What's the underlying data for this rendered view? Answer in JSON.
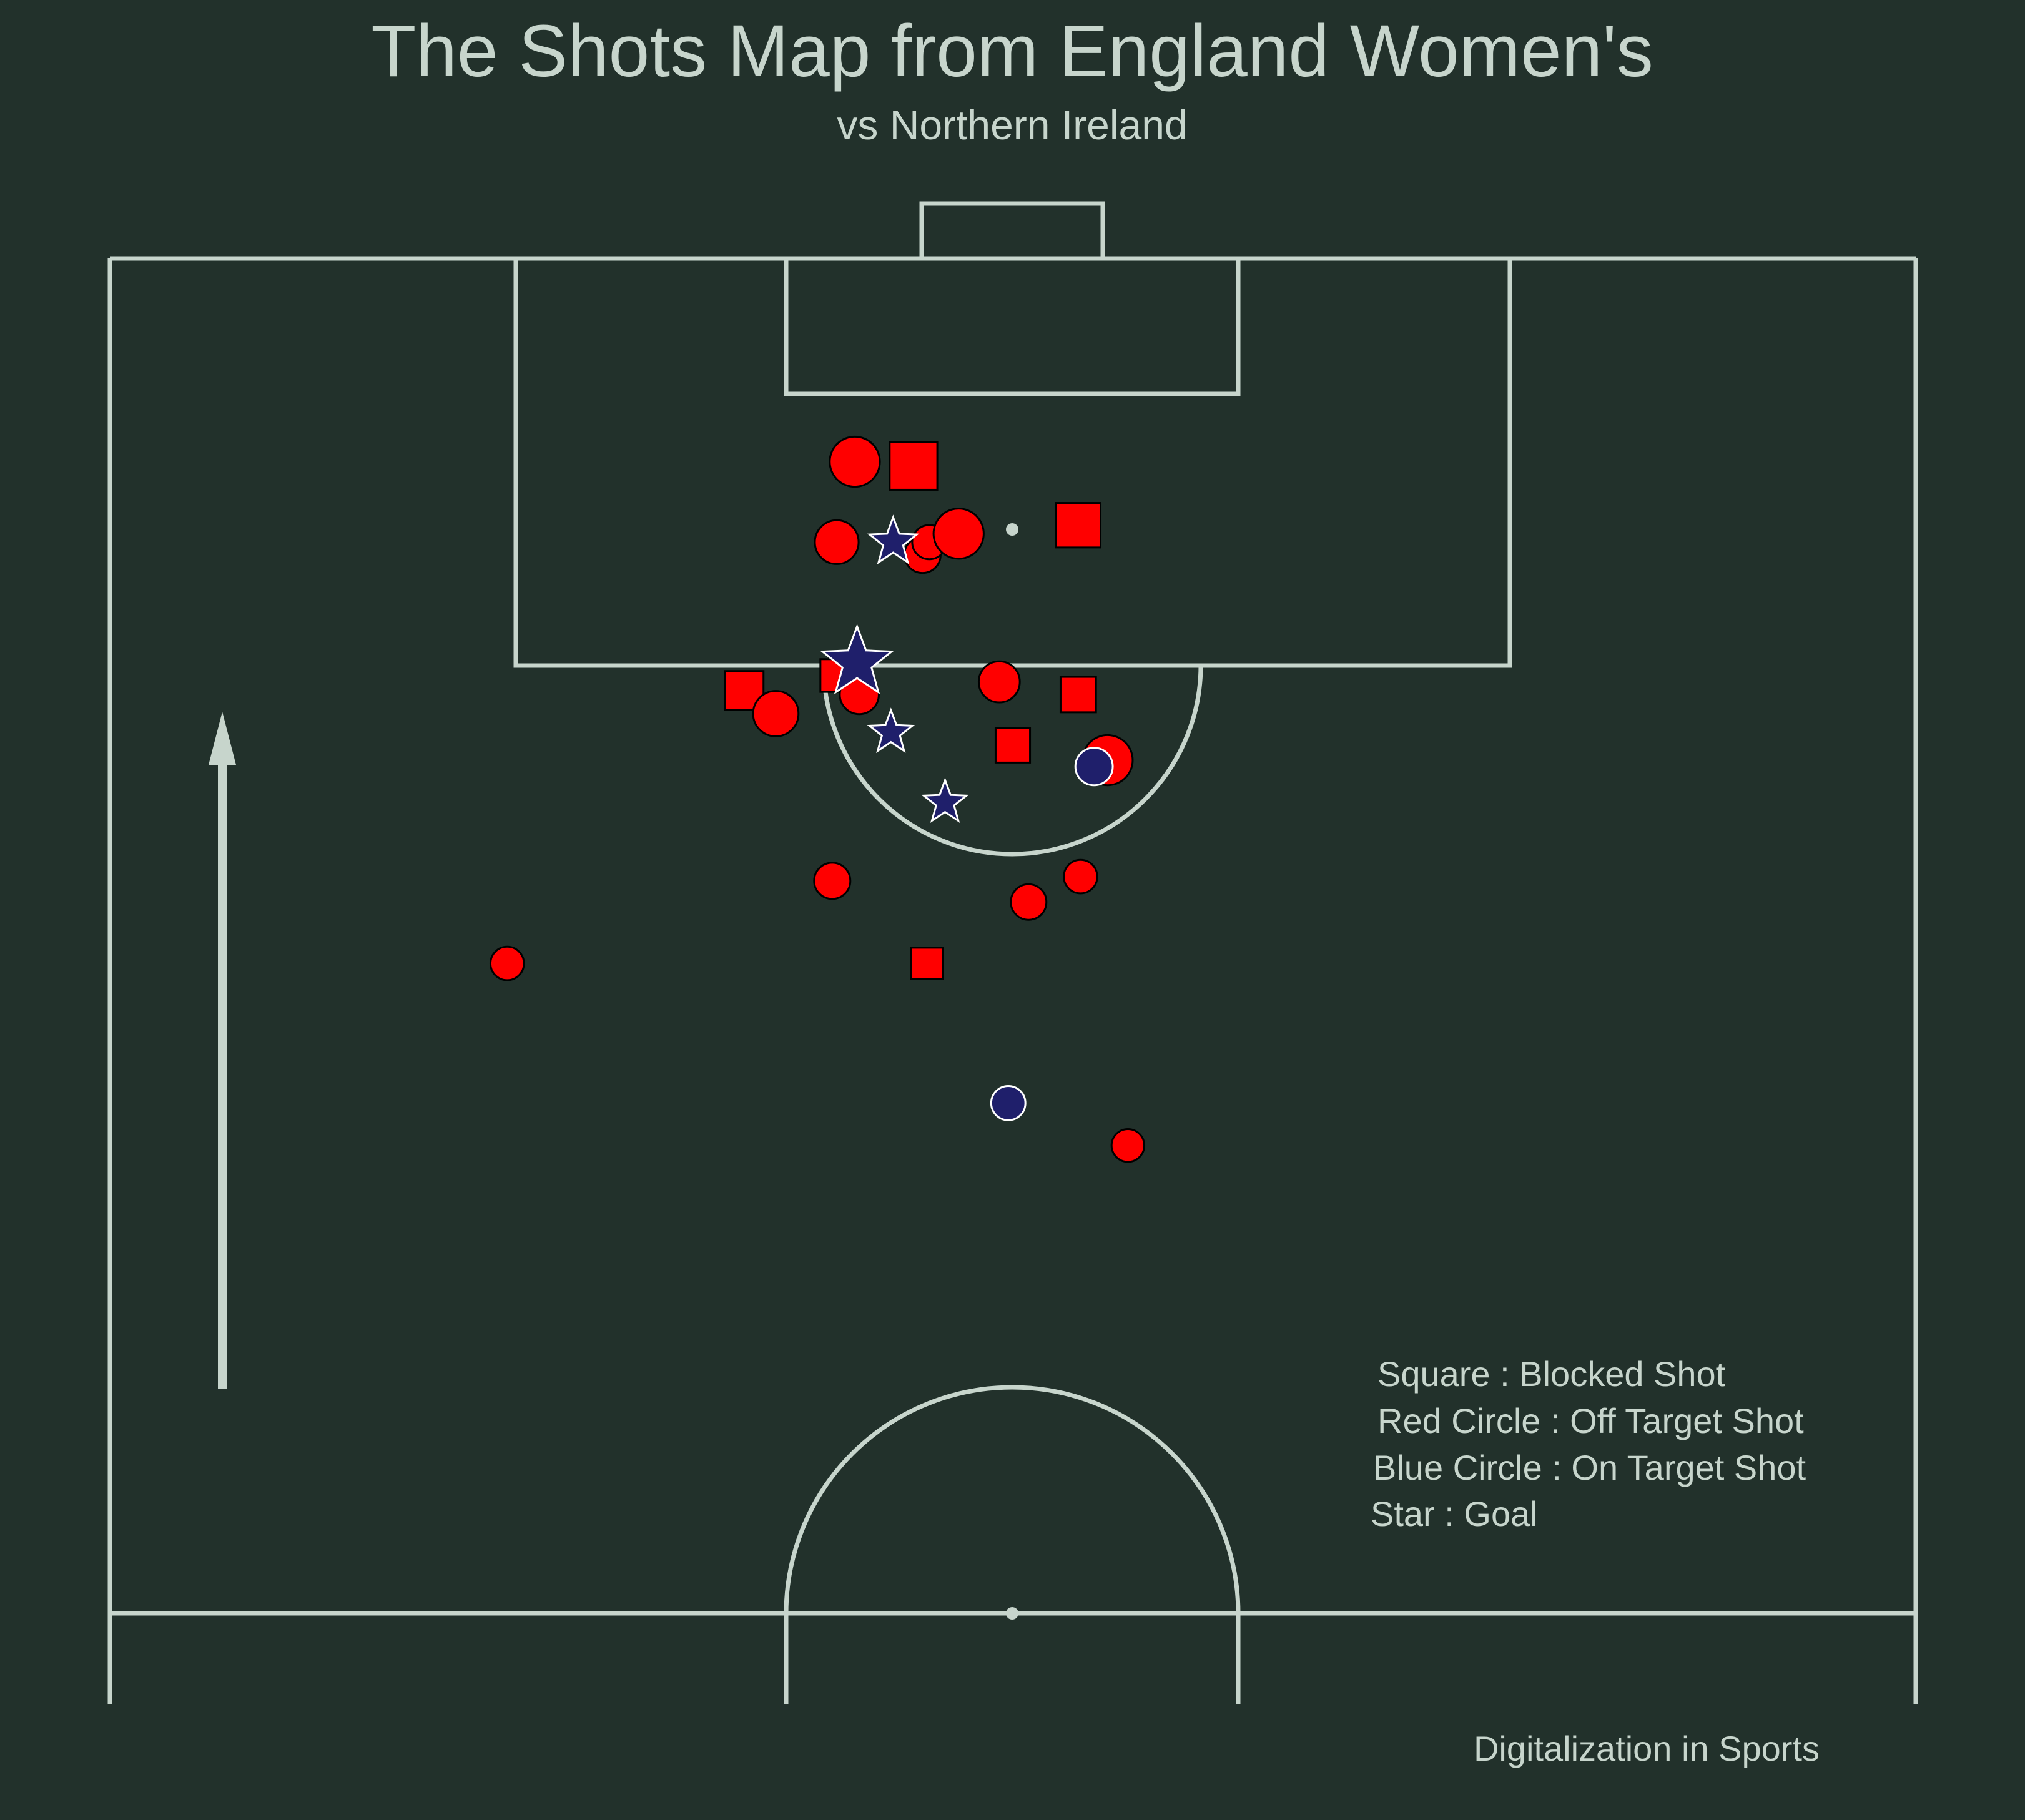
{
  "title": "The Shots Map from England Women's",
  "subtitle": "vs Northern Ireland",
  "credit": "Digitalization in Sports",
  "legend": [
    "Square : Blocked Shot",
    "Red Circle : Off Target Shot",
    "Blue Circle : On Target Shot",
    "Star : Goal"
  ],
  "colors": {
    "background": "#22312b",
    "lines": "#c7d5cc",
    "text": "#c7d5cc",
    "off_target": "#ff0000",
    "blocked": "#ff0000",
    "on_target": "#1f1f6b",
    "goal": "#1f1f6b"
  },
  "chart_data": {
    "type": "scatter",
    "title": "The Shots Map from England Women's",
    "subtitle": "vs Northern Ireland",
    "xlim": [
      0,
      80
    ],
    "ylim": [
      60,
      124
    ],
    "attack_direction": "up",
    "legend_placement": "bottom-right",
    "marker_size_meaning": "",
    "shots": [
      {
        "x": 33.0,
        "y": 114.4,
        "outcome": "Off Target",
        "shape": "circle",
        "xg": 0.45
      },
      {
        "x": 35.6,
        "y": 114.2,
        "outcome": "Blocked",
        "shape": "square",
        "xg": 0.5
      },
      {
        "x": 32.2,
        "y": 110.6,
        "outcome": "Off Target",
        "shape": "circle",
        "xg": 0.28
      },
      {
        "x": 34.7,
        "y": 110.6,
        "outcome": "Goal",
        "shape": "star",
        "xg": 0.1
      },
      {
        "x": 36.0,
        "y": 110.0,
        "outcome": "Off Target",
        "shape": "circle",
        "xg": 0.13
      },
      {
        "x": 36.3,
        "y": 110.6,
        "outcome": "Off Target",
        "shape": "circle",
        "xg": 0.1
      },
      {
        "x": 37.6,
        "y": 111.0,
        "outcome": "Off Target",
        "shape": "circle",
        "xg": 0.45
      },
      {
        "x": 42.9,
        "y": 111.4,
        "outcome": "Blocked",
        "shape": "square",
        "xg": 0.4
      },
      {
        "x": 33.1,
        "y": 104.9,
        "outcome": "Goal",
        "shape": "star",
        "xg": 0.45
      },
      {
        "x": 32.2,
        "y": 104.3,
        "outcome": "Blocked",
        "shape": "square",
        "xg": 0.12
      },
      {
        "x": 28.1,
        "y": 103.6,
        "outcome": "Blocked",
        "shape": "square",
        "xg": 0.24
      },
      {
        "x": 29.5,
        "y": 102.5,
        "outcome": "Off Target",
        "shape": "circle",
        "xg": 0.32
      },
      {
        "x": 33.2,
        "y": 103.4,
        "outcome": "Off Target",
        "shape": "circle",
        "xg": 0.18
      },
      {
        "x": 34.6,
        "y": 101.6,
        "outcome": "Goal",
        "shape": "star",
        "xg": 0.06
      },
      {
        "x": 40.0,
        "y": 101.0,
        "outcome": "Blocked",
        "shape": "square",
        "xg": 0.15
      },
      {
        "x": 39.4,
        "y": 104.0,
        "outcome": "Off Target",
        "shape": "circle",
        "xg": 0.22
      },
      {
        "x": 42.9,
        "y": 103.4,
        "outcome": "Blocked",
        "shape": "square",
        "xg": 0.17
      },
      {
        "x": 44.2,
        "y": 100.3,
        "outcome": "Off Target",
        "shape": "circle",
        "xg": 0.45
      },
      {
        "x": 43.6,
        "y": 100.0,
        "outcome": "On Target",
        "shape": "circle",
        "xg": 0.15
      },
      {
        "x": 37.0,
        "y": 98.3,
        "outcome": "Goal",
        "shape": "star",
        "xg": 0.06
      },
      {
        "x": 32.0,
        "y": 94.6,
        "outcome": "Off Target",
        "shape": "circle",
        "xg": 0.13
      },
      {
        "x": 43.0,
        "y": 94.8,
        "outcome": "Off Target",
        "shape": "circle",
        "xg": 0.09
      },
      {
        "x": 40.7,
        "y": 93.6,
        "outcome": "Off Target",
        "shape": "circle",
        "xg": 0.12
      },
      {
        "x": 17.6,
        "y": 90.7,
        "outcome": "Off Target",
        "shape": "circle",
        "xg": 0.09
      },
      {
        "x": 36.2,
        "y": 90.7,
        "outcome": "Blocked",
        "shape": "square",
        "xg": 0.1
      },
      {
        "x": 39.8,
        "y": 84.1,
        "outcome": "On Target",
        "shape": "circle",
        "xg": 0.1
      },
      {
        "x": 45.1,
        "y": 82.1,
        "outcome": "Off Target",
        "shape": "circle",
        "xg": 0.08
      }
    ]
  }
}
